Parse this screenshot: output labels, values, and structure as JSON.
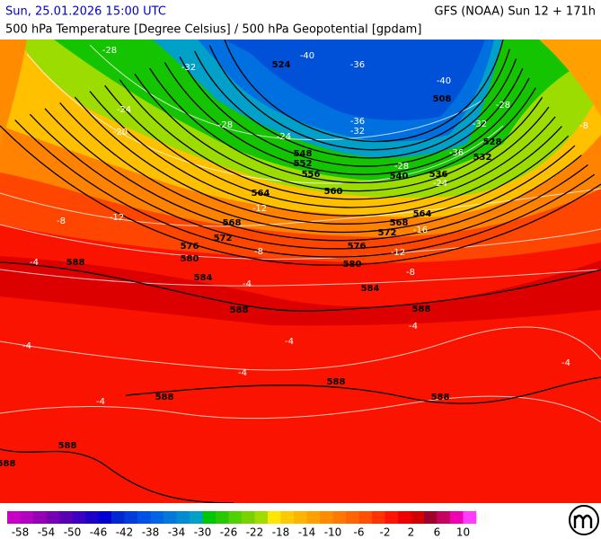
{
  "header": {
    "datetime": "Sun, 25.01.2026 15:00 UTC",
    "model": "GFS (NOAA) Sun 12 + 171h",
    "subtitle": "500 hPa Temperature [Degree Celsius] / 500 hPa Geopotential [gpdam]"
  },
  "map": {
    "geopotential_labels": [
      524,
      508,
      528,
      532,
      536,
      540,
      548,
      552,
      556,
      560,
      564,
      564,
      568,
      568,
      572,
      572,
      576,
      576,
      580,
      580,
      584,
      584,
      588,
      588,
      588,
      588,
      588,
      588,
      588,
      588
    ],
    "temperature_labels": [
      -28,
      -32,
      -40,
      -36,
      -40,
      -36,
      -32,
      -28,
      -24,
      -24,
      -20,
      -28,
      -32,
      -36,
      -28,
      -24,
      -12,
      -12,
      -8,
      -16,
      -12,
      -8,
      -8,
      -4,
      -4,
      -4,
      -4,
      -4,
      -4,
      -4,
      -4,
      -8
    ]
  },
  "colorbar": {
    "labels": [
      -58,
      -54,
      -50,
      -46,
      -42,
      -38,
      -34,
      -30,
      -26,
      -22,
      -18,
      -14,
      -10,
      -6,
      -2,
      2,
      6,
      10
    ],
    "colors": [
      "#c800c8",
      "#b000c0",
      "#9600b4",
      "#7800b4",
      "#5a00b4",
      "#3c00c0",
      "#1e00c8",
      "#0000d2",
      "#0028d2",
      "#003cdc",
      "#0050e6",
      "#0064e6",
      "#0078dc",
      "#008cd2",
      "#00a0c8",
      "#00c800",
      "#28c800",
      "#50d200",
      "#78d200",
      "#a0dc00",
      "#ffe600",
      "#ffc800",
      "#ffb400",
      "#ffa000",
      "#ff8c00",
      "#ff7800",
      "#ff6400",
      "#ff5000",
      "#ff3200",
      "#ff1400",
      "#f00000",
      "#d20000",
      "#a0002d",
      "#c80064",
      "#f000b4",
      "#ff3cff"
    ]
  }
}
